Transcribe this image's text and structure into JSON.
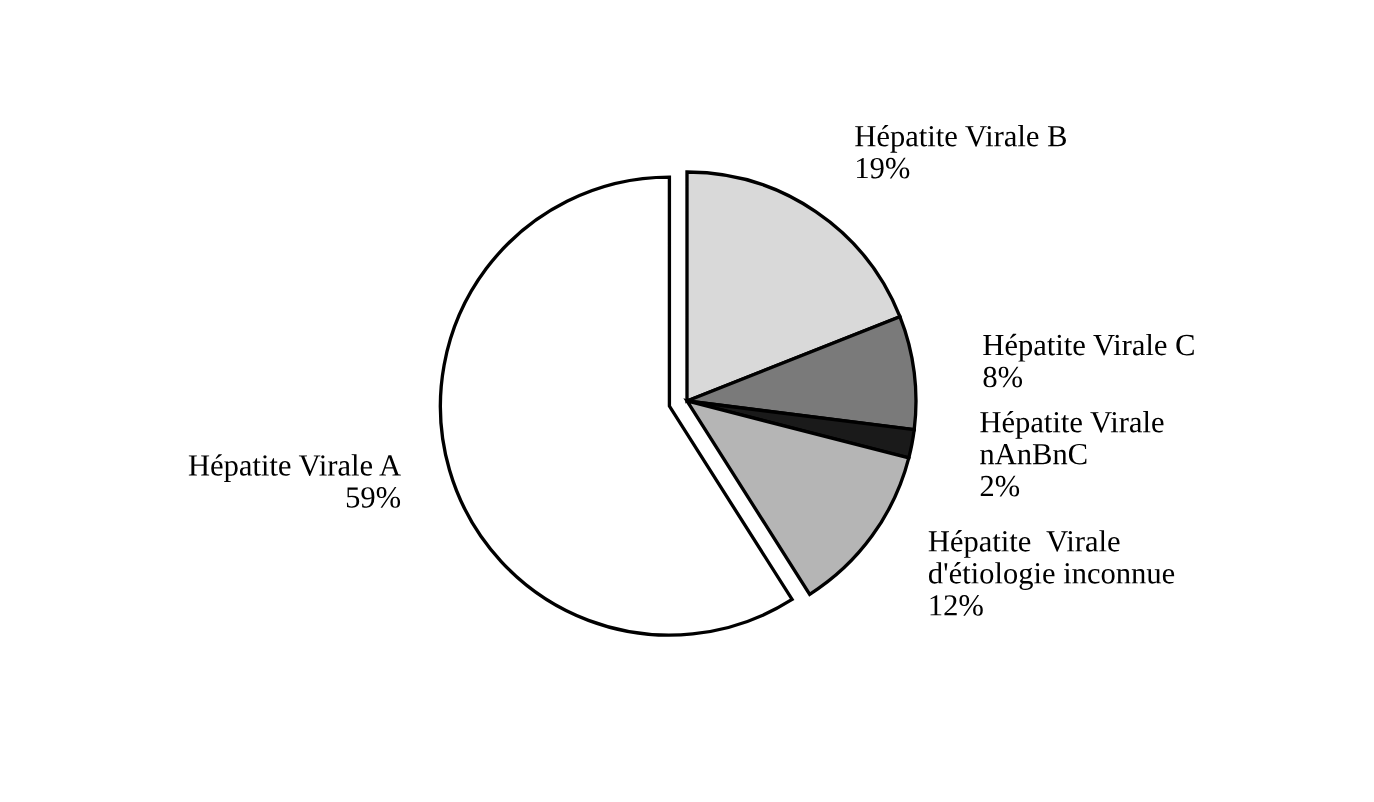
{
  "chart_data": {
    "type": "pie",
    "categories": [
      "Hépatite Virale B",
      "Hépatite Virale C",
      "Hépatite Virale\nnAnBnC",
      "Hépatite  Virale\nd'étiologie inconnue",
      "Hépatite Virale A"
    ],
    "values": [
      19,
      8,
      2,
      12,
      59
    ],
    "value_labels": [
      "19%",
      "8%",
      "2%",
      "12%",
      "59%"
    ],
    "colors": [
      "#d9d9d9",
      "#7a7a7a",
      "#1a1a1a",
      "#b5b5b5",
      "#ffffff"
    ]
  }
}
